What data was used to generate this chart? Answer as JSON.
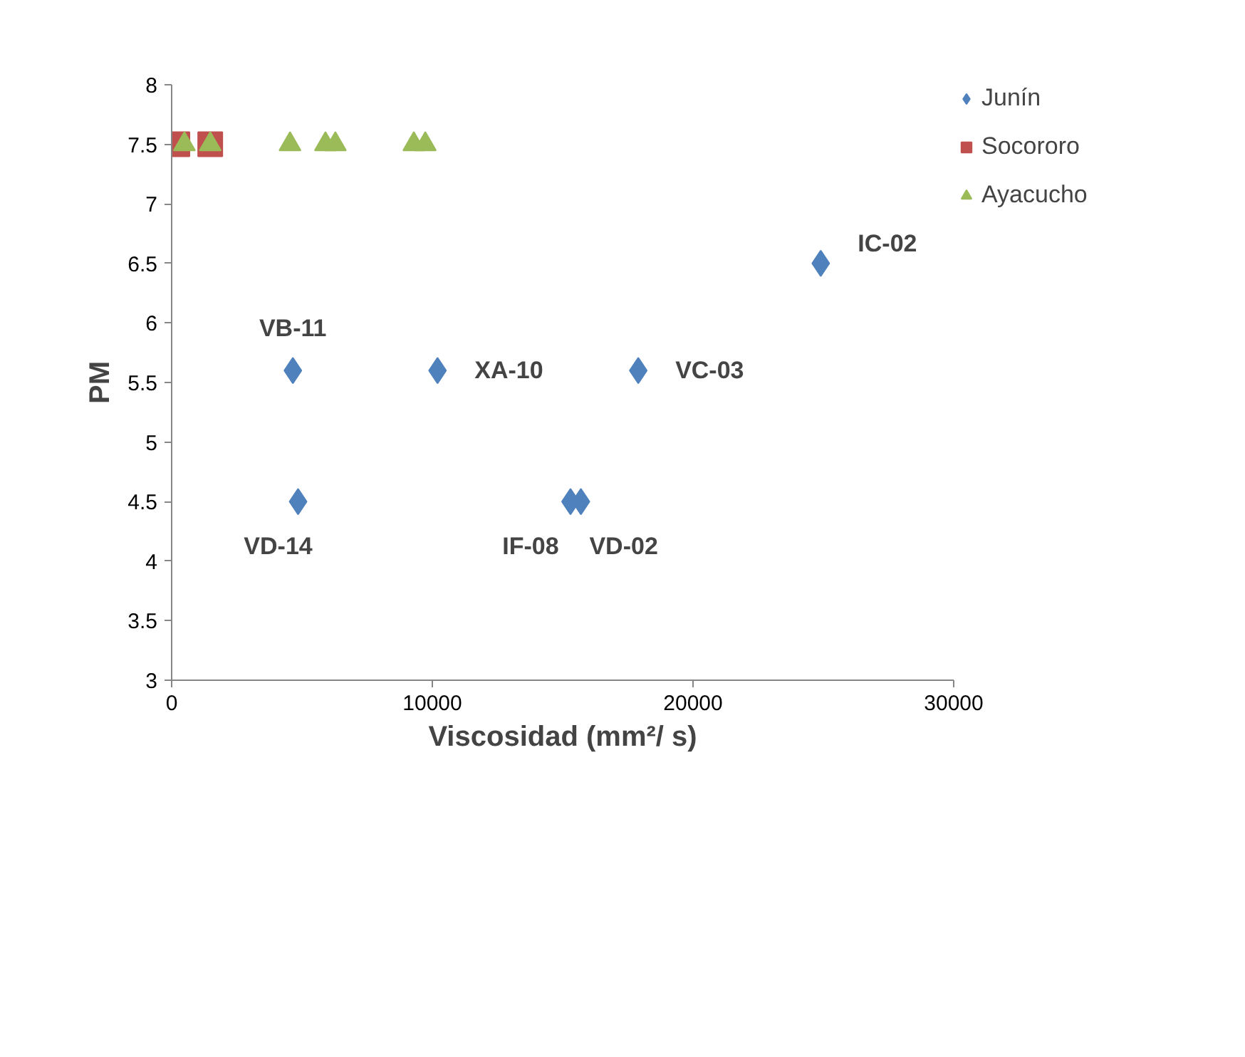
{
  "chart_data": {
    "type": "scatter",
    "xlabel": "Viscosidad (mm²/ s)",
    "ylabel": "PM",
    "xlim": [
      0,
      30000
    ],
    "xticks": [
      0,
      10000,
      20000,
      30000
    ],
    "ylim": [
      3,
      8
    ],
    "yticks": [
      3,
      3.5,
      4,
      4.5,
      5,
      5.5,
      6,
      6.5,
      7,
      7.5,
      8
    ],
    "grid": false,
    "legend": "top right",
    "series": [
      {
        "name": "Junín",
        "color": "#4f81bd",
        "marker": "diamond",
        "x": [
          24900,
          4650,
          10200,
          17900,
          4850,
          15300,
          15700
        ],
        "values": [
          6.5,
          5.6,
          5.6,
          5.6,
          4.5,
          4.5,
          4.5
        ]
      },
      {
        "name": "Socororo",
        "color": "#c0504d",
        "marker": "square",
        "x": [
          220,
          1480
        ],
        "values": [
          7.5,
          7.5
        ]
      },
      {
        "name": "Ayacucho",
        "color": "#9bbb59",
        "marker": "triangle",
        "x": [
          490,
          1480,
          4540,
          5900,
          6280,
          9290,
          9730
        ],
        "values": [
          7.5,
          7.5,
          7.5,
          7.5,
          7.5,
          7.5,
          7.5
        ]
      }
    ],
    "annotations": [
      {
        "text": "IC-02",
        "x": 24900,
        "y": 6.5
      },
      {
        "text": "VB-11",
        "x": 4650,
        "y": 5.6
      },
      {
        "text": "XA-10",
        "x": 10200,
        "y": 5.6
      },
      {
        "text": "VC-03",
        "x": 17900,
        "y": 5.6
      },
      {
        "text": "VD-14",
        "x": 4850,
        "y": 4.5
      },
      {
        "text": "IF-08",
        "x": 15300,
        "y": 4.5
      },
      {
        "text": "VD-02",
        "x": 15700,
        "y": 4.5
      }
    ]
  }
}
